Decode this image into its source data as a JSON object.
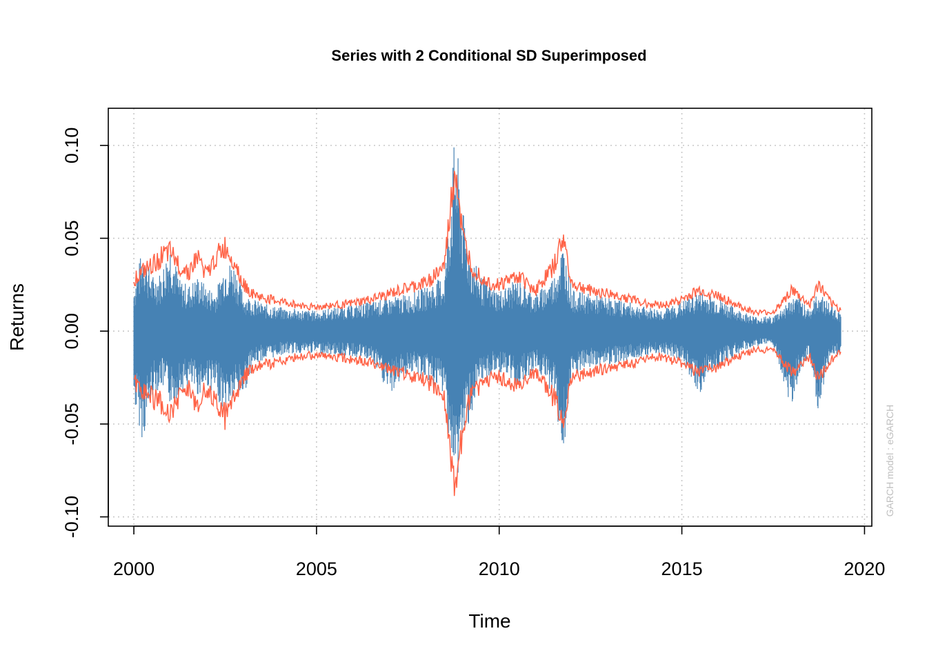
{
  "chart_data": {
    "type": "line",
    "title": "Series with 2 Conditional SD Superimposed",
    "xlabel": "Time",
    "ylabel": "Returns",
    "side_note": "GARCH model :  eGARCH",
    "xlim": [
      1999.3,
      2020.2
    ],
    "ylim": [
      -0.105,
      0.12
    ],
    "x_ticks": [
      2000,
      2005,
      2010,
      2015,
      2020
    ],
    "x_tick_labels": [
      "2000",
      "2005",
      "2010",
      "2015",
      "2020"
    ],
    "y_ticks": [
      -0.1,
      -0.05,
      0.0,
      0.05,
      0.1
    ],
    "y_tick_labels": [
      "-0.10",
      "-0.05",
      "0.00",
      "0.05",
      "0.10"
    ],
    "grid": true,
    "colors": {
      "returns": "#4682B4",
      "band": "#FF6347",
      "grid": "#C8C8C8"
    },
    "series": [
      {
        "role": "returns",
        "color": "#4682B4",
        "x": [
          2000.0,
          2000.25,
          2000.5,
          2000.75,
          2001.0,
          2001.25,
          2001.5,
          2001.75,
          2002.0,
          2002.25,
          2002.5,
          2002.75,
          2003.0,
          2003.25,
          2003.5,
          2003.75,
          2004.0,
          2004.5,
          2005.0,
          2005.5,
          2006.0,
          2006.5,
          2007.0,
          2007.5,
          2008.0,
          2008.5,
          2008.8,
          2009.0,
          2009.25,
          2009.5,
          2009.75,
          2010.0,
          2010.5,
          2011.0,
          2011.5,
          2011.75,
          2012.0,
          2012.5,
          2013.0,
          2013.5,
          2014.0,
          2014.5,
          2015.0,
          2015.5,
          2015.75,
          2016.0,
          2016.5,
          2017.0,
          2017.5,
          2018.0,
          2018.25,
          2018.5,
          2018.75,
          2019.0,
          2019.35
        ],
        "upper": [
          0.025,
          0.046,
          0.03,
          0.032,
          0.049,
          0.028,
          0.025,
          0.03,
          0.024,
          0.022,
          0.038,
          0.037,
          0.02,
          0.018,
          0.015,
          0.014,
          0.013,
          0.012,
          0.011,
          0.013,
          0.014,
          0.016,
          0.018,
          0.02,
          0.024,
          0.03,
          0.11,
          0.065,
          0.04,
          0.03,
          0.025,
          0.022,
          0.028,
          0.02,
          0.03,
          0.048,
          0.022,
          0.02,
          0.018,
          0.016,
          0.013,
          0.012,
          0.016,
          0.022,
          0.02,
          0.018,
          0.012,
          0.008,
          0.008,
          0.018,
          0.018,
          0.012,
          0.022,
          0.016,
          0.01
        ],
        "lower": [
          -0.039,
          -0.06,
          -0.035,
          -0.03,
          -0.04,
          -0.035,
          -0.03,
          -0.035,
          -0.03,
          -0.035,
          -0.045,
          -0.037,
          -0.035,
          -0.02,
          -0.016,
          -0.015,
          -0.013,
          -0.012,
          -0.012,
          -0.013,
          -0.014,
          -0.016,
          -0.035,
          -0.022,
          -0.026,
          -0.035,
          -0.09,
          -0.06,
          -0.045,
          -0.03,
          -0.025,
          -0.022,
          -0.03,
          -0.02,
          -0.035,
          -0.069,
          -0.025,
          -0.02,
          -0.018,
          -0.016,
          -0.013,
          -0.012,
          -0.016,
          -0.035,
          -0.022,
          -0.02,
          -0.013,
          -0.008,
          -0.008,
          -0.042,
          -0.02,
          -0.015,
          -0.047,
          -0.018,
          -0.012
        ]
      },
      {
        "role": "band",
        "color": "#FF6347",
        "x": [
          2000.0,
          2000.25,
          2000.5,
          2000.75,
          2001.0,
          2001.25,
          2001.5,
          2001.75,
          2002.0,
          2002.25,
          2002.5,
          2002.75,
          2003.0,
          2003.25,
          2003.5,
          2003.75,
          2004.0,
          2004.5,
          2005.0,
          2005.5,
          2006.0,
          2006.5,
          2007.0,
          2007.5,
          2008.0,
          2008.5,
          2008.8,
          2009.0,
          2009.25,
          2009.5,
          2009.75,
          2010.0,
          2010.5,
          2011.0,
          2011.5,
          2011.75,
          2012.0,
          2012.5,
          2013.0,
          2013.5,
          2014.0,
          2014.5,
          2015.0,
          2015.5,
          2015.75,
          2016.0,
          2016.5,
          2017.0,
          2017.5,
          2018.0,
          2018.25,
          2018.5,
          2018.75,
          2019.0,
          2019.35
        ],
        "values": [
          0.028,
          0.032,
          0.035,
          0.04,
          0.042,
          0.035,
          0.032,
          0.04,
          0.03,
          0.04,
          0.045,
          0.038,
          0.025,
          0.02,
          0.018,
          0.017,
          0.016,
          0.014,
          0.013,
          0.014,
          0.015,
          0.017,
          0.02,
          0.023,
          0.026,
          0.035,
          0.09,
          0.05,
          0.035,
          0.03,
          0.026,
          0.025,
          0.03,
          0.022,
          0.035,
          0.05,
          0.025,
          0.022,
          0.02,
          0.018,
          0.015,
          0.014,
          0.017,
          0.022,
          0.02,
          0.019,
          0.014,
          0.01,
          0.01,
          0.022,
          0.018,
          0.014,
          0.025,
          0.017,
          0.011
        ]
      }
    ]
  }
}
